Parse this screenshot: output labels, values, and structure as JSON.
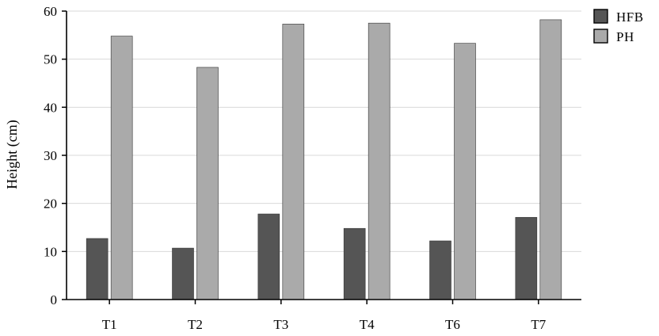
{
  "chart_data": {
    "type": "bar",
    "title": "",
    "xlabel": "",
    "ylabel": "Height (cm)",
    "categories": [
      "T1",
      "T2",
      "T3",
      "T4",
      "T6",
      "T7"
    ],
    "series": [
      {
        "name": "HFB",
        "color": "#555555",
        "values": [
          12.7,
          10.7,
          17.8,
          14.8,
          12.2,
          17.1
        ]
      },
      {
        "name": "PH",
        "color": "#aaaaaa",
        "values": [
          54.8,
          48.3,
          57.3,
          57.5,
          53.3,
          58.2
        ]
      }
    ],
    "ylim": [
      0,
      60
    ],
    "yticks": [
      0,
      10,
      20,
      30,
      40,
      50,
      60
    ],
    "grid": true,
    "legend": "top-right"
  }
}
